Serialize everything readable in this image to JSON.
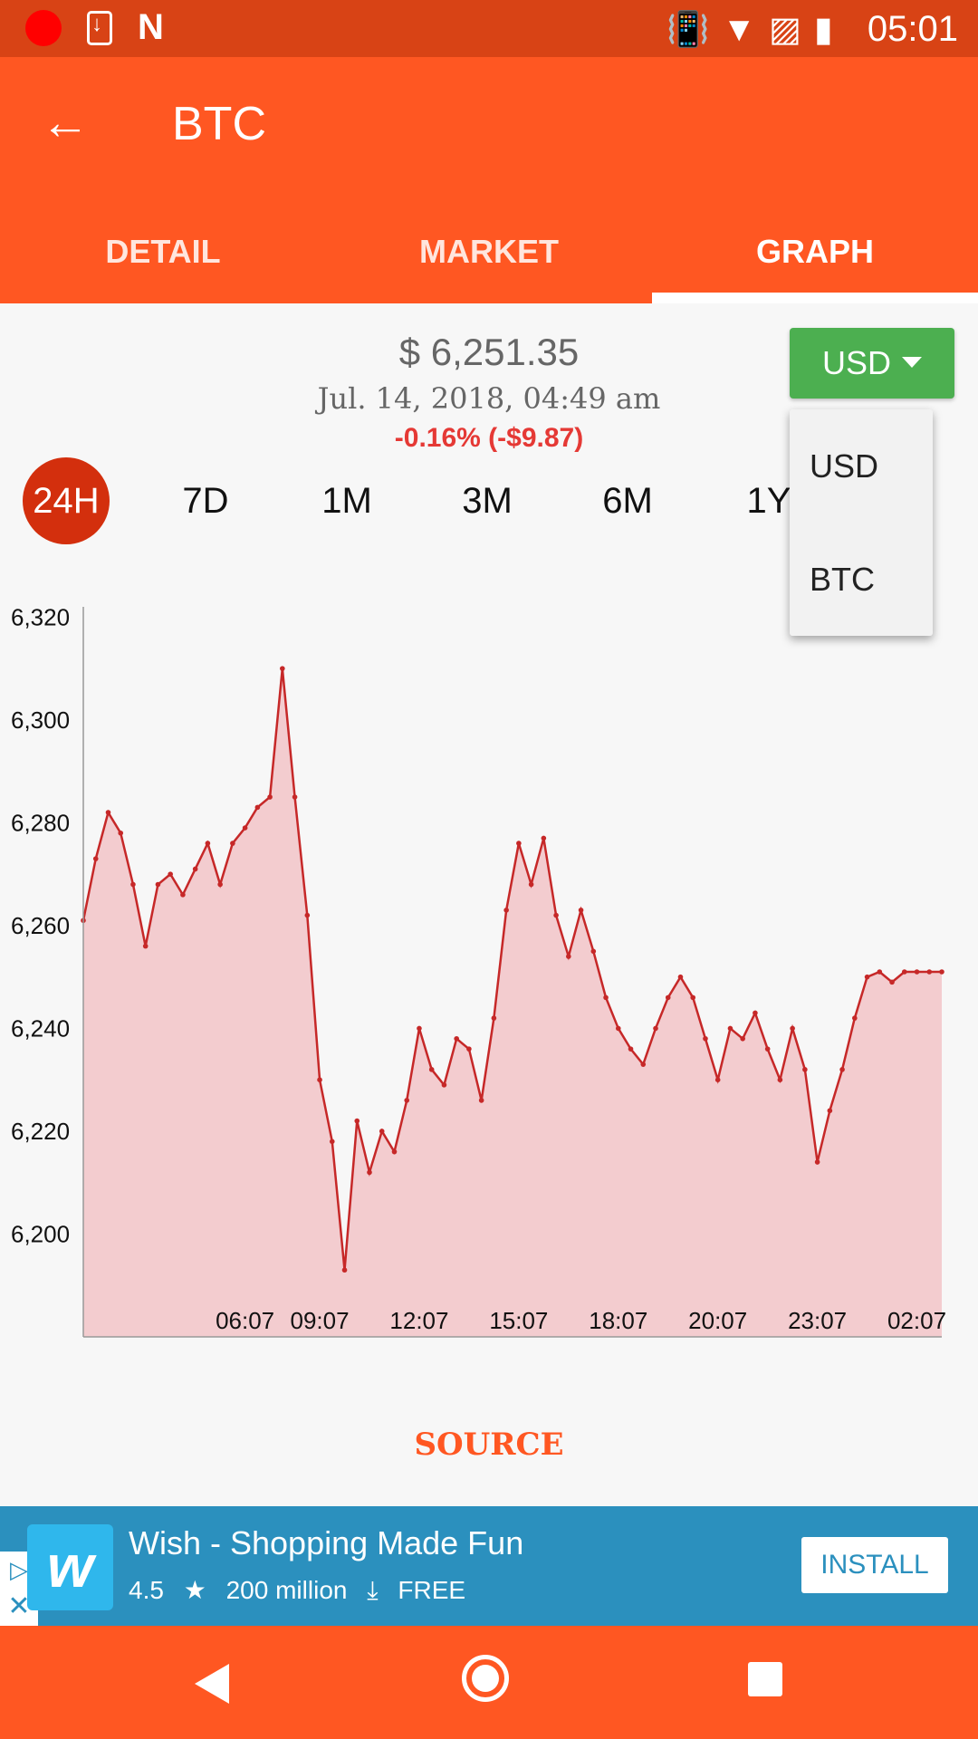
{
  "status_bar": {
    "time": "05:01",
    "icons": [
      "record-icon",
      "download-icon",
      "n-icon",
      "vibrate-icon",
      "wifi-icon",
      "no-sim-icon",
      "battery-charging-icon"
    ]
  },
  "app_bar": {
    "title": "BTC",
    "back_icon": "arrow-back-icon"
  },
  "tabs": [
    {
      "label": "DETAIL",
      "active": false
    },
    {
      "label": "MARKET",
      "active": false
    },
    {
      "label": "GRAPH",
      "active": true
    }
  ],
  "price": {
    "value": "$ 6,251.35",
    "date": "Jul. 14, 2018, 04:49 am",
    "change": "-0.16% (-$9.87)",
    "change_color": "#e53935"
  },
  "currency_select": {
    "selected": "USD",
    "options": [
      "USD",
      "BTC"
    ]
  },
  "ranges": [
    {
      "label": "24H",
      "active": true
    },
    {
      "label": "7D",
      "active": false
    },
    {
      "label": "1M",
      "active": false
    },
    {
      "label": "3M",
      "active": false
    },
    {
      "label": "6M",
      "active": false
    },
    {
      "label": "1Y",
      "active": false
    }
  ],
  "colors": {
    "primary": "#ff5722",
    "status_bar": "#d84315",
    "accent_green": "#4caf50",
    "line": "#c62828",
    "fill": "#f3cccf"
  },
  "chart_data": {
    "type": "area",
    "title": "",
    "xlabel": "",
    "ylabel": "",
    "ylim": [
      6180,
      6322
    ],
    "yticks": [
      6320,
      6300,
      6280,
      6260,
      6240,
      6220,
      6200
    ],
    "ytick_labels": [
      "6,320",
      "6,300",
      "6,280",
      "6,260",
      "6,240",
      "6,220",
      "6,200"
    ],
    "xtick_labels": [
      "06:07",
      "09:07",
      "12:07",
      "15:07",
      "18:07",
      "20:07",
      "23:07",
      "02:07"
    ],
    "xtick_positions": [
      13,
      19,
      27,
      35,
      43,
      51,
      59,
      67
    ],
    "grid": false,
    "x": [
      0,
      1,
      2,
      3,
      4,
      5,
      6,
      7,
      8,
      9,
      10,
      11,
      12,
      13,
      14,
      15,
      16,
      17,
      18,
      19,
      20,
      21,
      22,
      23,
      24,
      25,
      26,
      27,
      28,
      29,
      30,
      31,
      32,
      33,
      34,
      35,
      36,
      37,
      38,
      39,
      40,
      41,
      42,
      43,
      44,
      45,
      46,
      47,
      48,
      49,
      50,
      51,
      52,
      53,
      54,
      55,
      56,
      57,
      58,
      59,
      60,
      61,
      62,
      63,
      64,
      65,
      66,
      67,
      68,
      69
    ],
    "values": [
      6261,
      6273,
      6282,
      6278,
      6268,
      6256,
      6268,
      6270,
      6266,
      6271,
      6276,
      6268,
      6276,
      6279,
      6283,
      6285,
      6310,
      6285,
      6262,
      6230,
      6218,
      6193,
      6222,
      6212,
      6220,
      6216,
      6226,
      6240,
      6232,
      6229,
      6238,
      6236,
      6226,
      6242,
      6263,
      6276,
      6268,
      6277,
      6262,
      6254,
      6263,
      6255,
      6246,
      6240,
      6236,
      6233,
      6240,
      6246,
      6250,
      6246,
      6238,
      6230,
      6240,
      6238,
      6243,
      6236,
      6230,
      6240,
      6232,
      6214,
      6224,
      6232,
      6242,
      6250,
      6251,
      6249,
      6251,
      6251,
      6251,
      6251
    ]
  },
  "source": {
    "label": "SOURCE"
  },
  "ad": {
    "title": "Wish - Shopping Made Fun",
    "rating": "4.5",
    "installs": "200 million",
    "price": "FREE",
    "install_label": "INSTALL",
    "logo_text": "w"
  }
}
